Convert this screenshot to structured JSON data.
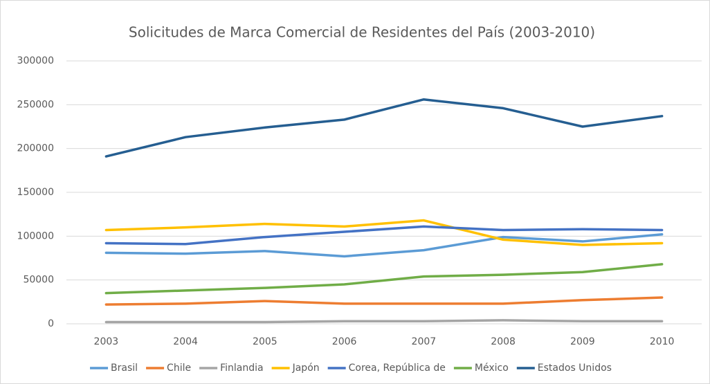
{
  "chart_data": {
    "type": "line",
    "title": "Solicitudes de Marca Comercial de Residentes del País (2003-2010)",
    "categories": [
      "2003",
      "2004",
      "2005",
      "2006",
      "2007",
      "2008",
      "2009",
      "2010"
    ],
    "series": [
      {
        "name": "Brasil",
        "color": "#5b9bd5",
        "values": [
          81000,
          80000,
          83000,
          77000,
          84000,
          99000,
          94000,
          102000
        ]
      },
      {
        "name": "Chile",
        "color": "#ed7d31",
        "values": [
          22000,
          23000,
          26000,
          23000,
          23000,
          23000,
          27000,
          30000
        ]
      },
      {
        "name": "Finlandia",
        "color": "#a5a5a5",
        "values": [
          2000,
          2000,
          2000,
          3000,
          3000,
          4000,
          3000,
          3000
        ]
      },
      {
        "name": "Japón",
        "color": "#ffc000",
        "values": [
          107000,
          110000,
          114000,
          111000,
          118000,
          96000,
          90000,
          92000
        ]
      },
      {
        "name": "Corea, República de",
        "color": "#4472c4",
        "values": [
          92000,
          91000,
          99000,
          105000,
          111000,
          107000,
          108000,
          107000
        ]
      },
      {
        "name": "México",
        "color": "#70ad47",
        "values": [
          35000,
          38000,
          41000,
          45000,
          54000,
          56000,
          59000,
          68000
        ]
      },
      {
        "name": "Estados Unidos",
        "color": "#255e91",
        "values": [
          191000,
          213000,
          224000,
          233000,
          256000,
          246000,
          225000,
          237000
        ]
      }
    ],
    "ylim": [
      0,
      300000
    ],
    "yticks": [
      0,
      50000,
      100000,
      150000,
      200000,
      250000,
      300000
    ],
    "grid": true,
    "legend": "bottom"
  }
}
